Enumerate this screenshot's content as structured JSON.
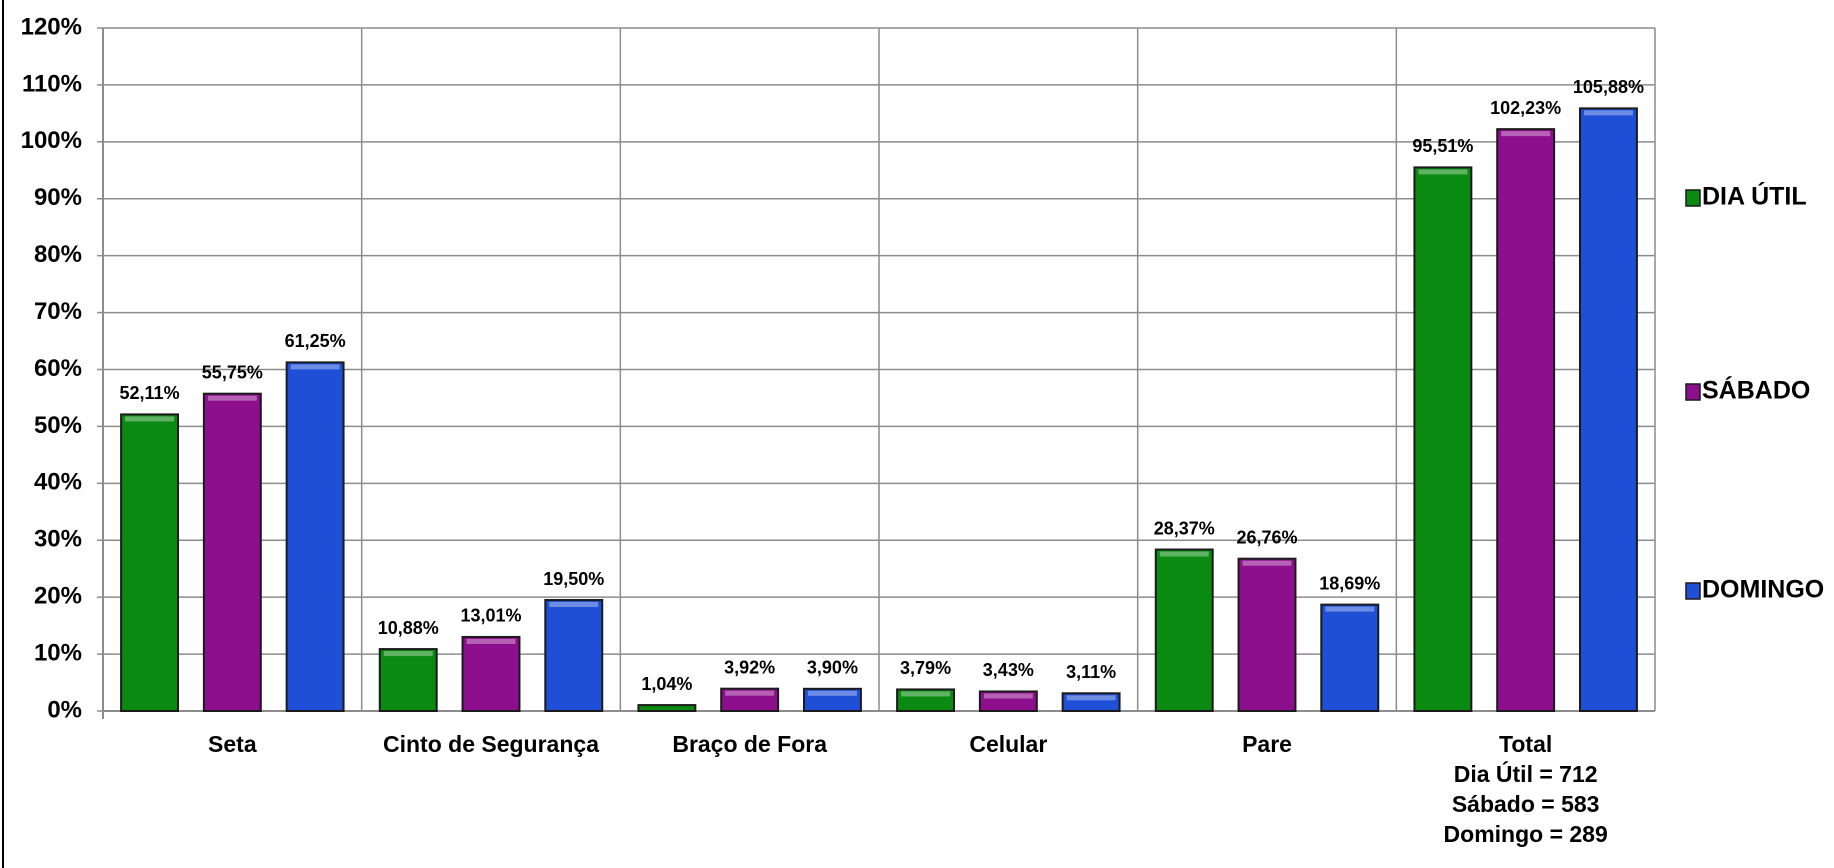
{
  "chart_data": {
    "type": "bar",
    "categories": [
      "Seta",
      "Cinto de Segurança",
      "Braço de Fora",
      "Celular",
      "Pare",
      "Total\nDia Útil = 712\nSábado = 583\nDomingo = 289"
    ],
    "series": [
      {
        "name": "DIA ÚTIL",
        "color": "#0b8a12",
        "values": [
          52.11,
          10.88,
          1.04,
          3.79,
          28.37,
          95.51
        ],
        "value_labels": [
          "52,11%",
          "10,88%",
          "1,04%",
          "3,79%",
          "28,37%",
          "95,51%"
        ]
      },
      {
        "name": "SÁBADO",
        "color": "#8e0f8e",
        "values": [
          55.75,
          13.01,
          3.92,
          3.43,
          26.76,
          102.23
        ],
        "value_labels": [
          "55,75%",
          "13,01%",
          "3,92%",
          "3,43%",
          "26,76%",
          "102,23%"
        ]
      },
      {
        "name": "DOMINGO",
        "color": "#1f4fd6",
        "values": [
          61.25,
          19.5,
          3.9,
          3.11,
          18.69,
          105.88
        ],
        "value_labels": [
          "61,25%",
          "19,50%",
          "3,90%",
          "3,11%",
          "18,69%",
          "105,88%"
        ]
      }
    ],
    "ylim": [
      0,
      120
    ],
    "yticks": [
      {
        "value": 0,
        "label": "0%"
      },
      {
        "value": 10,
        "label": "10%"
      },
      {
        "value": 20,
        "label": "20%"
      },
      {
        "value": 30,
        "label": "30%"
      },
      {
        "value": 40,
        "label": "40%"
      },
      {
        "value": 50,
        "label": "50%"
      },
      {
        "value": 60,
        "label": "60%"
      },
      {
        "value": 70,
        "label": "70%"
      },
      {
        "value": 80,
        "label": "80%"
      },
      {
        "value": 90,
        "label": "90%"
      },
      {
        "value": 100,
        "label": "100%"
      },
      {
        "value": 110,
        "label": "110%"
      },
      {
        "value": 120,
        "label": "120%"
      }
    ],
    "grid": true,
    "legend": "right"
  }
}
